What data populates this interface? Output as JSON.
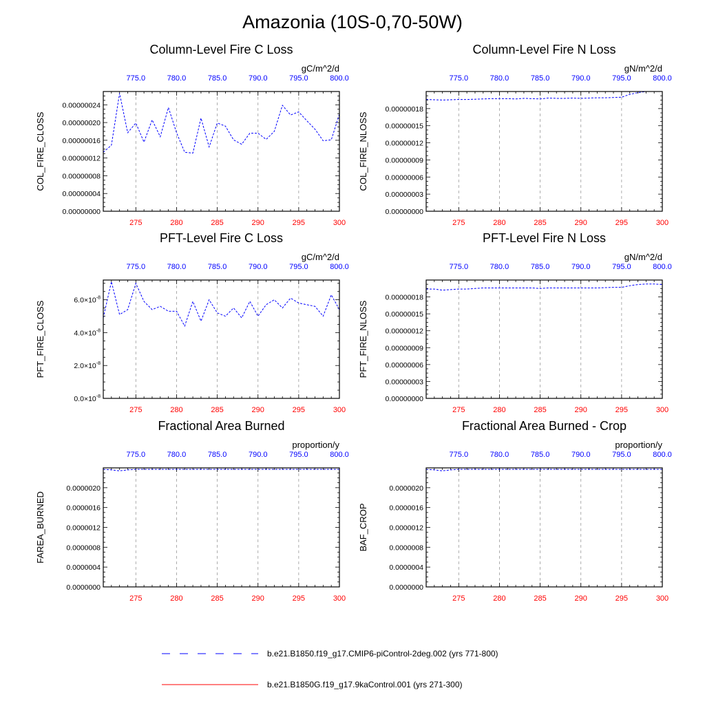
{
  "title": "Amazonia (10S-0,70-50W)",
  "colors": {
    "bottom_axis": "#ff0000",
    "top_axis": "#0000ff",
    "series_blue": "#0000ff",
    "series_red": "#ff0000",
    "grid": "#999999",
    "frame": "#000000"
  },
  "legend": [
    {
      "label": "b.e21.B1850.f19_g17.CMIP6-piControl-2deg.002 (yrs 771-800)",
      "color": "#0000ff",
      "style": "dashed"
    },
    {
      "label": "b.e21.B1850G.f19_g17.9kaControl.001 (yrs 271-300)",
      "color": "#ff0000",
      "style": "solid"
    }
  ],
  "chart_data": [
    {
      "type": "line",
      "title": "Column-Level Fire C Loss",
      "units": "gC/m^2/d",
      "ylabel": "COL_FIRE_CLOSS",
      "x_bottom": {
        "range": [
          271,
          300
        ],
        "ticks": [
          "275",
          "280",
          "285",
          "290",
          "295",
          "300"
        ]
      },
      "x_top": {
        "range": [
          771,
          800
        ],
        "ticks": [
          "775.0",
          "780.0",
          "785.0",
          "790.0",
          "795.0",
          "800.0"
        ]
      },
      "ylim": [
        0,
        2.7e-07
      ],
      "yticks": [
        0,
        4e-08,
        8e-08,
        1.2e-07,
        1.6e-07,
        2e-07,
        2.4e-07
      ],
      "ytick_labels": [
        "0.00000000",
        "0.00000004",
        "0.00000008",
        "0.00000012",
        "0.00000016",
        "0.00000020",
        "0.00000024"
      ],
      "series": [
        {
          "style": "dashed",
          "color": "#0000ff",
          "x": [
            771,
            772,
            773,
            774,
            775,
            776,
            777,
            778,
            779,
            780,
            781,
            782,
            783,
            784,
            785,
            786,
            787,
            788,
            789,
            790,
            791,
            792,
            793,
            794,
            795,
            796,
            797,
            798,
            799,
            800
          ],
          "values": [
            1.33e-07,
            1.49e-07,
            2.66e-07,
            1.77e-07,
            1.99e-07,
            1.56e-07,
            2.06e-07,
            1.68e-07,
            2.34e-07,
            1.77e-07,
            1.33e-07,
            1.31e-07,
            2.1e-07,
            1.45e-07,
            1.99e-07,
            1.92e-07,
            1.61e-07,
            1.51e-07,
            1.76e-07,
            1.76e-07,
            1.62e-07,
            1.8e-07,
            2.39e-07,
            2.17e-07,
            2.24e-07,
            2.04e-07,
            1.85e-07,
            1.59e-07,
            1.61e-07,
            2.19e-07
          ]
        },
        {
          "style": "solid",
          "color": "#ff0000",
          "x": [],
          "values": []
        }
      ]
    },
    {
      "type": "line",
      "title": "Column-Level Fire N Loss",
      "units": "gN/m^2/d",
      "ylabel": "COL_FIRE_NLOSS",
      "x_bottom": {
        "range": [
          271,
          300
        ],
        "ticks": [
          "275",
          "280",
          "285",
          "290",
          "295",
          "300"
        ]
      },
      "x_top": {
        "range": [
          771,
          800
        ],
        "ticks": [
          "775.0",
          "780.0",
          "785.0",
          "790.0",
          "795.0",
          "800.0"
        ]
      },
      "ylim": [
        0,
        2.1e-07
      ],
      "yticks": [
        0,
        3e-08,
        6e-08,
        9e-08,
        1.2e-07,
        1.5e-07,
        1.8e-07
      ],
      "ytick_labels": [
        "0.00000000",
        "0.00000003",
        "0.00000006",
        "0.00000009",
        "0.00000012",
        "0.00000015",
        "0.00000018"
      ],
      "series": [
        {
          "style": "dashed",
          "color": "#0000ff",
          "x": [
            771,
            772,
            773,
            774,
            775,
            776,
            777,
            778,
            779,
            780,
            781,
            782,
            783,
            784,
            785,
            786,
            787,
            788,
            789,
            790,
            791,
            792,
            793,
            794,
            795,
            796,
            797,
            798,
            799,
            800
          ],
          "values": [
            1.96e-07,
            1.955e-07,
            1.95e-07,
            1.955e-07,
            1.96e-07,
            1.96e-07,
            1.965e-07,
            1.97e-07,
            1.975e-07,
            1.975e-07,
            1.975e-07,
            1.97e-07,
            1.98e-07,
            1.975e-07,
            1.97e-07,
            1.985e-07,
            1.98e-07,
            1.98e-07,
            1.985e-07,
            1.98e-07,
            1.985e-07,
            1.99e-07,
            1.99e-07,
            1.995e-07,
            2e-07,
            2.05e-07,
            2.08e-07,
            2.1e-07,
            2.1e-07,
            2.1e-07
          ]
        },
        {
          "style": "solid",
          "color": "#ff0000",
          "x": [],
          "values": []
        }
      ]
    },
    {
      "type": "line",
      "title": "PFT-Level Fire C Loss",
      "units": "gC/m^2/d",
      "ylabel": "PFT_FIRE_CLOSS",
      "x_bottom": {
        "range": [
          271,
          300
        ],
        "ticks": [
          "275",
          "280",
          "285",
          "290",
          "295",
          "300"
        ]
      },
      "x_top": {
        "range": [
          771,
          800
        ],
        "ticks": [
          "775.0",
          "780.0",
          "785.0",
          "790.0",
          "795.0",
          "800.0"
        ]
      },
      "ylim": [
        0,
        7.2e-08
      ],
      "yticks": [
        0,
        2e-08,
        4e-08,
        6e-08
      ],
      "ytick_labels": [
        "0.0",
        "2.0",
        "4.0",
        "6.0"
      ],
      "ytick_suffix": "×10",
      "ytick_exponent": "-8",
      "series": [
        {
          "style": "dashed",
          "color": "#0000ff",
          "x": [
            771,
            772,
            773,
            774,
            775,
            776,
            777,
            778,
            779,
            780,
            781,
            782,
            783,
            784,
            785,
            786,
            787,
            788,
            789,
            790,
            791,
            792,
            793,
            794,
            795,
            796,
            797,
            798,
            799,
            800
          ],
          "values": [
            4.9e-08,
            7.1e-08,
            5.1e-08,
            5.4e-08,
            7e-08,
            5.9e-08,
            5.4e-08,
            5.6e-08,
            5.3e-08,
            5.3e-08,
            4.4e-08,
            5.9e-08,
            4.7e-08,
            6e-08,
            5.2e-08,
            5e-08,
            5.5e-08,
            4.9e-08,
            5.9e-08,
            5e-08,
            5.7e-08,
            6e-08,
            5.5e-08,
            6.1e-08,
            5.8e-08,
            5.7e-08,
            5.6e-08,
            5e-08,
            6.3e-08,
            5.4e-08
          ]
        },
        {
          "style": "solid",
          "color": "#ff0000",
          "x": [],
          "values": []
        }
      ]
    },
    {
      "type": "line",
      "title": "PFT-Level Fire N Loss",
      "units": "gN/m^2/d",
      "ylabel": "PFT_FIRE_NLOSS",
      "x_bottom": {
        "range": [
          271,
          300
        ],
        "ticks": [
          "275",
          "280",
          "285",
          "290",
          "295",
          "300"
        ]
      },
      "x_top": {
        "range": [
          771,
          800
        ],
        "ticks": [
          "775.0",
          "780.0",
          "785.0",
          "790.0",
          "795.0",
          "800.0"
        ]
      },
      "ylim": [
        0,
        2.1e-07
      ],
      "yticks": [
        0,
        3e-08,
        6e-08,
        9e-08,
        1.2e-07,
        1.5e-07,
        1.8e-07
      ],
      "ytick_labels": [
        "0.00000000",
        "0.00000003",
        "0.00000006",
        "0.00000009",
        "0.00000012",
        "0.00000015",
        "0.00000018"
      ],
      "series": [
        {
          "style": "dashed",
          "color": "#0000ff",
          "x": [
            771,
            772,
            773,
            774,
            775,
            776,
            777,
            778,
            779,
            780,
            781,
            782,
            783,
            784,
            785,
            786,
            787,
            788,
            789,
            790,
            791,
            792,
            793,
            794,
            795,
            796,
            797,
            798,
            799,
            800
          ],
          "values": [
            1.94e-07,
            1.94e-07,
            1.92e-07,
            1.93e-07,
            1.94e-07,
            1.94e-07,
            1.95e-07,
            1.96e-07,
            1.96e-07,
            1.96e-07,
            1.96e-07,
            1.96e-07,
            1.96e-07,
            1.96e-07,
            1.95e-07,
            1.96e-07,
            1.96e-07,
            1.96e-07,
            1.96e-07,
            1.96e-07,
            1.96e-07,
            1.96e-07,
            1.965e-07,
            1.97e-07,
            1.97e-07,
            2e-07,
            2.02e-07,
            2.03e-07,
            2.03e-07,
            2.02e-07
          ]
        },
        {
          "style": "solid",
          "color": "#ff0000",
          "x": [],
          "values": []
        }
      ]
    },
    {
      "type": "line",
      "title": "Fractional Area Burned",
      "units": "proportion/y",
      "ylabel": "FAREA_BURNED",
      "x_bottom": {
        "range": [
          271,
          300
        ],
        "ticks": [
          "275",
          "280",
          "285",
          "290",
          "295",
          "300"
        ]
      },
      "x_top": {
        "range": [
          771,
          800
        ],
        "ticks": [
          "775.0",
          "780.0",
          "785.0",
          "790.0",
          "795.0",
          "800.0"
        ]
      },
      "ylim": [
        0,
        2.4e-06
      ],
      "yticks": [
        0,
        4e-07,
        8e-07,
        1.2e-06,
        1.6e-06,
        2e-06
      ],
      "ytick_labels": [
        "0.0000000",
        "0.0000004",
        "0.0000008",
        "0.0000012",
        "0.0000016",
        "0.0000020"
      ],
      "series": [
        {
          "style": "dashed",
          "color": "#0000ff",
          "x": [
            771,
            772,
            773,
            774,
            775,
            776,
            777,
            778,
            779,
            780,
            781,
            782,
            783,
            784,
            785,
            786,
            787,
            788,
            789,
            790,
            791,
            792,
            793,
            794,
            795,
            796,
            797,
            798,
            799,
            800
          ],
          "values": [
            2.37e-06,
            2.36e-06,
            2.34e-06,
            2.36e-06,
            2.37e-06,
            2.37e-06,
            2.37e-06,
            2.37e-06,
            2.37e-06,
            2.37e-06,
            2.37e-06,
            2.37e-06,
            2.37e-06,
            2.37e-06,
            2.37e-06,
            2.37e-06,
            2.37e-06,
            2.37e-06,
            2.37e-06,
            2.37e-06,
            2.37e-06,
            2.37e-06,
            2.37e-06,
            2.37e-06,
            2.37e-06,
            2.37e-06,
            2.37e-06,
            2.37e-06,
            2.37e-06,
            2.37e-06
          ]
        },
        {
          "style": "solid",
          "color": "#ff0000",
          "x": [],
          "values": []
        }
      ]
    },
    {
      "type": "line",
      "title": "Fractional Area Burned - Crop",
      "units": "proportion/y",
      "ylabel": "BAF_CROP",
      "x_bottom": {
        "range": [
          271,
          300
        ],
        "ticks": [
          "275",
          "280",
          "285",
          "290",
          "295",
          "300"
        ]
      },
      "x_top": {
        "range": [
          771,
          800
        ],
        "ticks": [
          "775.0",
          "780.0",
          "785.0",
          "790.0",
          "795.0",
          "800.0"
        ]
      },
      "ylim": [
        0,
        2.4e-06
      ],
      "yticks": [
        0,
        4e-07,
        8e-07,
        1.2e-06,
        1.6e-06,
        2e-06
      ],
      "ytick_labels": [
        "0.0000000",
        "0.0000004",
        "0.0000008",
        "0.0000012",
        "0.0000016",
        "0.0000020"
      ],
      "series": [
        {
          "style": "dashed",
          "color": "#0000ff",
          "x": [
            771,
            772,
            773,
            774,
            775,
            776,
            777,
            778,
            779,
            780,
            781,
            782,
            783,
            784,
            785,
            786,
            787,
            788,
            789,
            790,
            791,
            792,
            793,
            794,
            795,
            796,
            797,
            798,
            799,
            800
          ],
          "values": [
            2.37e-06,
            2.36e-06,
            2.34e-06,
            2.36e-06,
            2.37e-06,
            2.37e-06,
            2.37e-06,
            2.37e-06,
            2.37e-06,
            2.37e-06,
            2.37e-06,
            2.37e-06,
            2.37e-06,
            2.37e-06,
            2.37e-06,
            2.37e-06,
            2.37e-06,
            2.37e-06,
            2.37e-06,
            2.37e-06,
            2.37e-06,
            2.37e-06,
            2.37e-06,
            2.37e-06,
            2.37e-06,
            2.37e-06,
            2.37e-06,
            2.37e-06,
            2.37e-06,
            2.37e-06
          ]
        },
        {
          "style": "solid",
          "color": "#ff0000",
          "x": [],
          "values": []
        }
      ]
    }
  ]
}
